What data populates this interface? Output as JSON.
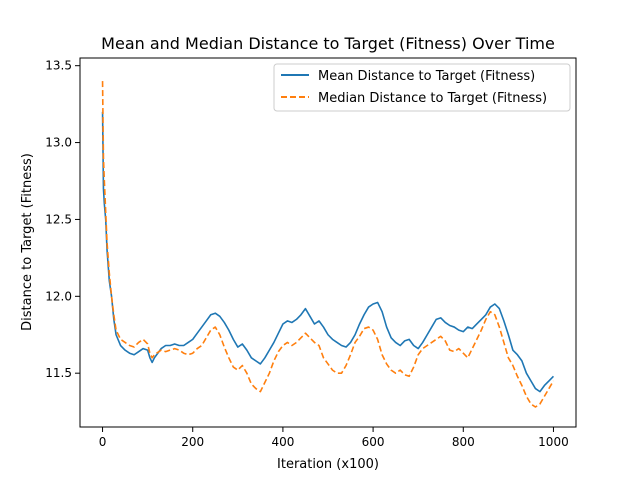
{
  "chart_data": {
    "type": "line",
    "title": "Mean and Median Distance to Target (Fitness) Over Time",
    "xlabel": "Iteration (x100)",
    "ylabel": "Distance to Target (Fitness)",
    "xlim": [
      -50,
      1050
    ],
    "ylim": [
      11.15,
      13.55
    ],
    "xticks": [
      0,
      200,
      400,
      600,
      800,
      1000
    ],
    "xtick_labels": [
      "0",
      "200",
      "400",
      "600",
      "800",
      "1000"
    ],
    "yticks": [
      11.5,
      12.0,
      12.5,
      13.0,
      13.5
    ],
    "ytick_labels": [
      "11.5",
      "12.0",
      "12.5",
      "13.0",
      "13.5"
    ],
    "grid": false,
    "legend_position": "top-right",
    "series": [
      {
        "name": "Mean Distance to Target (Fitness)",
        "color": "#1f77b4",
        "style": "solid",
        "x": [
          0,
          2,
          4,
          7,
          10,
          15,
          20,
          25,
          30,
          40,
          50,
          60,
          70,
          80,
          90,
          100,
          105,
          110,
          115,
          120,
          130,
          140,
          150,
          160,
          170,
          180,
          190,
          200,
          210,
          220,
          230,
          240,
          250,
          260,
          270,
          280,
          290,
          300,
          310,
          320,
          330,
          340,
          350,
          360,
          370,
          380,
          390,
          400,
          410,
          420,
          430,
          440,
          450,
          460,
          470,
          480,
          490,
          500,
          510,
          520,
          530,
          540,
          550,
          560,
          570,
          580,
          590,
          600,
          610,
          620,
          630,
          640,
          650,
          660,
          670,
          680,
          690,
          700,
          710,
          720,
          730,
          740,
          750,
          760,
          770,
          780,
          790,
          800,
          810,
          820,
          830,
          840,
          850,
          860,
          870,
          880,
          890,
          900,
          910,
          920,
          930,
          940,
          950,
          960,
          970,
          980,
          990,
          1000
        ],
        "y": [
          13.2,
          12.7,
          12.6,
          12.5,
          12.3,
          12.1,
          12.0,
          11.85,
          11.75,
          11.68,
          11.65,
          11.63,
          11.62,
          11.64,
          11.66,
          11.65,
          11.6,
          11.57,
          11.6,
          11.62,
          11.66,
          11.68,
          11.68,
          11.69,
          11.68,
          11.68,
          11.7,
          11.72,
          11.76,
          11.8,
          11.84,
          11.88,
          11.89,
          11.87,
          11.83,
          11.78,
          11.72,
          11.67,
          11.69,
          11.65,
          11.6,
          11.58,
          11.56,
          11.6,
          11.65,
          11.7,
          11.76,
          11.82,
          11.84,
          11.83,
          11.85,
          11.88,
          11.92,
          11.87,
          11.82,
          11.84,
          11.8,
          11.75,
          11.72,
          11.7,
          11.68,
          11.67,
          11.7,
          11.75,
          11.82,
          11.88,
          11.93,
          11.95,
          11.96,
          11.9,
          11.8,
          11.73,
          11.7,
          11.68,
          11.71,
          11.72,
          11.68,
          11.66,
          11.7,
          11.75,
          11.8,
          11.85,
          11.86,
          11.83,
          11.81,
          11.8,
          11.78,
          11.77,
          11.8,
          11.79,
          11.82,
          11.85,
          11.88,
          11.93,
          11.95,
          11.92,
          11.84,
          11.75,
          11.65,
          11.62,
          11.58,
          11.5,
          11.45,
          11.4,
          11.38,
          11.42,
          11.45,
          11.48
        ]
      },
      {
        "name": "Median Distance to Target (Fitness)",
        "color": "#ff7f0e",
        "style": "dashed",
        "x": [
          0,
          2,
          4,
          7,
          10,
          15,
          20,
          25,
          30,
          40,
          50,
          60,
          70,
          80,
          90,
          100,
          105,
          110,
          115,
          120,
          130,
          140,
          150,
          160,
          170,
          180,
          190,
          200,
          210,
          220,
          230,
          240,
          250,
          260,
          270,
          280,
          290,
          300,
          310,
          320,
          330,
          340,
          350,
          360,
          370,
          380,
          390,
          400,
          410,
          420,
          430,
          440,
          450,
          460,
          470,
          480,
          490,
          500,
          510,
          520,
          530,
          540,
          550,
          560,
          570,
          580,
          590,
          600,
          610,
          620,
          630,
          640,
          650,
          660,
          670,
          680,
          690,
          700,
          710,
          720,
          730,
          740,
          750,
          760,
          770,
          780,
          790,
          800,
          810,
          820,
          830,
          840,
          850,
          860,
          870,
          880,
          890,
          900,
          910,
          920,
          930,
          940,
          950,
          960,
          970,
          980,
          990,
          1000
        ],
        "y": [
          13.4,
          12.9,
          12.75,
          12.55,
          12.35,
          12.15,
          12.0,
          11.88,
          11.78,
          11.72,
          11.7,
          11.68,
          11.67,
          11.7,
          11.72,
          11.69,
          11.63,
          11.6,
          11.62,
          11.63,
          11.65,
          11.64,
          11.65,
          11.66,
          11.65,
          11.63,
          11.62,
          11.63,
          11.66,
          11.68,
          11.73,
          11.78,
          11.8,
          11.75,
          11.67,
          11.6,
          11.54,
          11.52,
          11.55,
          11.5,
          11.43,
          11.4,
          11.38,
          11.44,
          11.5,
          11.58,
          11.64,
          11.68,
          11.7,
          11.68,
          11.7,
          11.73,
          11.76,
          11.73,
          11.7,
          11.68,
          11.6,
          11.56,
          11.52,
          11.5,
          11.5,
          11.55,
          11.62,
          11.7,
          11.74,
          11.79,
          11.8,
          11.78,
          11.72,
          11.62,
          11.56,
          11.52,
          11.5,
          11.52,
          11.49,
          11.48,
          11.54,
          11.62,
          11.66,
          11.68,
          11.7,
          11.72,
          11.74,
          11.71,
          11.65,
          11.64,
          11.66,
          11.63,
          11.6,
          11.66,
          11.72,
          11.78,
          11.85,
          11.9,
          11.88,
          11.8,
          11.7,
          11.6,
          11.55,
          11.48,
          11.42,
          11.35,
          11.3,
          11.28,
          11.3,
          11.35,
          11.4,
          11.45
        ]
      }
    ]
  }
}
